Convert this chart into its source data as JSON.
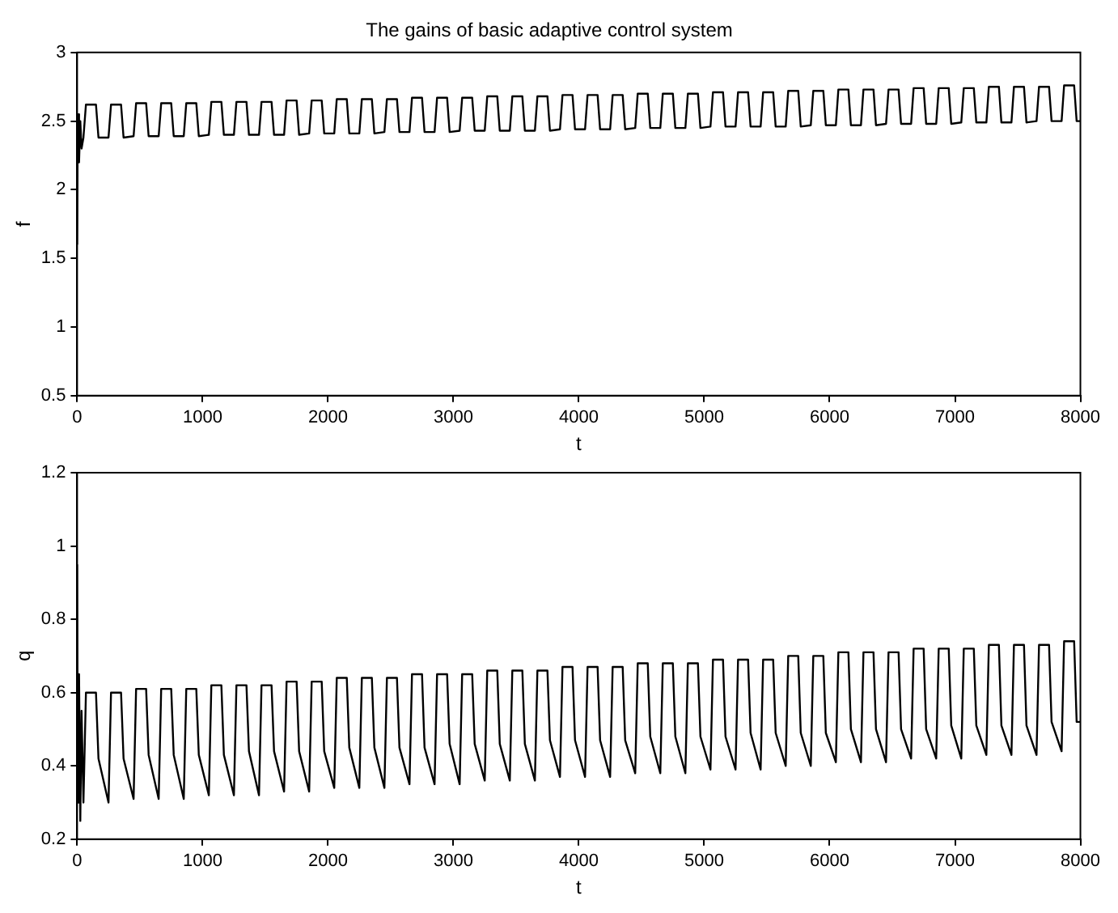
{
  "chart_data": [
    {
      "type": "line",
      "title": "The gains of basic adaptive control system",
      "xlabel": "t",
      "ylabel": "f",
      "grid": false,
      "legend": false,
      "marker": "none",
      "line_style": "solid",
      "x": [
        0,
        5,
        15,
        25,
        35,
        50,
        70,
        150,
        170,
        250,
        270,
        350,
        370,
        450,
        470,
        550,
        570,
        650,
        670,
        750,
        770,
        850,
        870,
        950,
        970,
        1050,
        1070,
        1150,
        1170,
        1250,
        1270,
        1350,
        1370,
        1450,
        1470,
        1550,
        1570,
        1650,
        1670,
        1750,
        1770,
        1850,
        1870,
        1950,
        1970,
        2050,
        2070,
        2150,
        2170,
        2250,
        2270,
        2350,
        2370,
        2450,
        2470,
        2550,
        2570,
        2650,
        2670,
        2750,
        2770,
        2850,
        2870,
        2950,
        2970,
        3050,
        3070,
        3150,
        3170,
        3250,
        3270,
        3350,
        3370,
        3450,
        3470,
        3550,
        3570,
        3650,
        3670,
        3750,
        3770,
        3850,
        3870,
        3950,
        3970,
        4050,
        4070,
        4150,
        4170,
        4250,
        4270,
        4350,
        4370,
        4450,
        4470,
        4550,
        4570,
        4650,
        4670,
        4750,
        4770,
        4850,
        4870,
        4950,
        4970,
        5050,
        5070,
        5150,
        5170,
        5250,
        5270,
        5350,
        5370,
        5450,
        5470,
        5550,
        5570,
        5650,
        5670,
        5750,
        5770,
        5850,
        5870,
        5950,
        5970,
        6050,
        6070,
        6150,
        6170,
        6250,
        6270,
        6350,
        6370,
        6450,
        6470,
        6550,
        6570,
        6650,
        6670,
        6750,
        6770,
        6850,
        6870,
        6950,
        6970,
        7050,
        7070,
        7150,
        7170,
        7250,
        7270,
        7350,
        7370,
        7450,
        7470,
        7550,
        7570,
        7650,
        7670,
        7750,
        7770,
        7850,
        7870,
        7950,
        7970,
        8000
      ],
      "series": [
        {
          "color": "#000000",
          "values": [
            1.6,
            2.55,
            2.2,
            2.5,
            2.3,
            2.38,
            2.62,
            2.62,
            2.38,
            2.38,
            2.62,
            2.62,
            2.38,
            2.39,
            2.63,
            2.63,
            2.39,
            2.39,
            2.63,
            2.63,
            2.39,
            2.39,
            2.63,
            2.63,
            2.39,
            2.4,
            2.64,
            2.64,
            2.4,
            2.4,
            2.64,
            2.64,
            2.4,
            2.4,
            2.64,
            2.64,
            2.4,
            2.4,
            2.65,
            2.65,
            2.4,
            2.41,
            2.65,
            2.65,
            2.41,
            2.41,
            2.66,
            2.66,
            2.41,
            2.41,
            2.66,
            2.66,
            2.41,
            2.42,
            2.66,
            2.66,
            2.42,
            2.42,
            2.67,
            2.67,
            2.42,
            2.42,
            2.67,
            2.67,
            2.42,
            2.43,
            2.67,
            2.67,
            2.43,
            2.43,
            2.68,
            2.68,
            2.43,
            2.43,
            2.68,
            2.68,
            2.43,
            2.43,
            2.68,
            2.68,
            2.43,
            2.44,
            2.69,
            2.69,
            2.44,
            2.44,
            2.69,
            2.69,
            2.44,
            2.44,
            2.69,
            2.69,
            2.44,
            2.45,
            2.7,
            2.7,
            2.45,
            2.45,
            2.7,
            2.7,
            2.45,
            2.45,
            2.7,
            2.7,
            2.45,
            2.46,
            2.71,
            2.71,
            2.46,
            2.46,
            2.71,
            2.71,
            2.46,
            2.46,
            2.71,
            2.71,
            2.46,
            2.46,
            2.72,
            2.72,
            2.46,
            2.47,
            2.72,
            2.72,
            2.47,
            2.47,
            2.73,
            2.73,
            2.47,
            2.47,
            2.73,
            2.73,
            2.47,
            2.48,
            2.73,
            2.73,
            2.48,
            2.48,
            2.74,
            2.74,
            2.48,
            2.48,
            2.74,
            2.74,
            2.48,
            2.49,
            2.74,
            2.74,
            2.49,
            2.49,
            2.75,
            2.75,
            2.49,
            2.49,
            2.75,
            2.75,
            2.49,
            2.5,
            2.75,
            2.75,
            2.5,
            2.5,
            2.76,
            2.76,
            2.5,
            2.5
          ]
        }
      ],
      "xlim": [
        0,
        8000
      ],
      "xticks": [
        0,
        1000,
        2000,
        3000,
        4000,
        5000,
        6000,
        7000,
        8000
      ],
      "ylim": [
        0.5,
        3
      ],
      "yticks": [
        0.5,
        1,
        1.5,
        2,
        2.5,
        3
      ]
    },
    {
      "type": "line",
      "xlabel": "t",
      "ylabel": "q",
      "grid": false,
      "legend": false,
      "marker": "none",
      "line_style": "solid",
      "x": [
        0,
        5,
        15,
        25,
        35,
        50,
        70,
        150,
        170,
        250,
        270,
        350,
        370,
        450,
        470,
        550,
        570,
        650,
        670,
        750,
        770,
        850,
        870,
        950,
        970,
        1050,
        1070,
        1150,
        1170,
        1250,
        1270,
        1350,
        1370,
        1450,
        1470,
        1550,
        1570,
        1650,
        1670,
        1750,
        1770,
        1850,
        1870,
        1950,
        1970,
        2050,
        2070,
        2150,
        2170,
        2250,
        2270,
        2350,
        2370,
        2450,
        2470,
        2550,
        2570,
        2650,
        2670,
        2750,
        2770,
        2850,
        2870,
        2950,
        2970,
        3050,
        3070,
        3150,
        3170,
        3250,
        3270,
        3350,
        3370,
        3450,
        3470,
        3550,
        3570,
        3650,
        3670,
        3750,
        3770,
        3850,
        3870,
        3950,
        3970,
        4050,
        4070,
        4150,
        4170,
        4250,
        4270,
        4350,
        4370,
        4450,
        4470,
        4550,
        4570,
        4650,
        4670,
        4750,
        4770,
        4850,
        4870,
        4950,
        4970,
        5050,
        5070,
        5150,
        5170,
        5250,
        5270,
        5350,
        5370,
        5450,
        5470,
        5550,
        5570,
        5650,
        5670,
        5750,
        5770,
        5850,
        5870,
        5950,
        5970,
        6050,
        6070,
        6150,
        6170,
        6250,
        6270,
        6350,
        6370,
        6450,
        6470,
        6550,
        6570,
        6650,
        6670,
        6750,
        6770,
        6850,
        6870,
        6950,
        6970,
        7050,
        7070,
        7150,
        7170,
        7250,
        7270,
        7350,
        7370,
        7450,
        7470,
        7550,
        7570,
        7650,
        7670,
        7750,
        7770,
        7850,
        7870,
        7950,
        7970,
        8000
      ],
      "series": [
        {
          "color": "#000000",
          "values": [
            0.95,
            0.3,
            0.65,
            0.25,
            0.55,
            0.3,
            0.6,
            0.6,
            0.42,
            0.3,
            0.6,
            0.6,
            0.42,
            0.31,
            0.61,
            0.61,
            0.43,
            0.31,
            0.61,
            0.61,
            0.43,
            0.31,
            0.61,
            0.61,
            0.43,
            0.32,
            0.62,
            0.62,
            0.43,
            0.32,
            0.62,
            0.62,
            0.44,
            0.32,
            0.62,
            0.62,
            0.44,
            0.33,
            0.63,
            0.63,
            0.44,
            0.33,
            0.63,
            0.63,
            0.44,
            0.34,
            0.64,
            0.64,
            0.45,
            0.34,
            0.64,
            0.64,
            0.45,
            0.34,
            0.64,
            0.64,
            0.45,
            0.35,
            0.65,
            0.65,
            0.45,
            0.35,
            0.65,
            0.65,
            0.46,
            0.35,
            0.65,
            0.65,
            0.46,
            0.36,
            0.66,
            0.66,
            0.46,
            0.36,
            0.66,
            0.66,
            0.46,
            0.36,
            0.66,
            0.66,
            0.47,
            0.37,
            0.67,
            0.67,
            0.47,
            0.37,
            0.67,
            0.67,
            0.47,
            0.37,
            0.67,
            0.67,
            0.47,
            0.38,
            0.68,
            0.68,
            0.48,
            0.38,
            0.68,
            0.68,
            0.48,
            0.38,
            0.68,
            0.68,
            0.48,
            0.39,
            0.69,
            0.69,
            0.48,
            0.39,
            0.69,
            0.69,
            0.49,
            0.39,
            0.69,
            0.69,
            0.49,
            0.4,
            0.7,
            0.7,
            0.49,
            0.4,
            0.7,
            0.7,
            0.49,
            0.41,
            0.71,
            0.71,
            0.5,
            0.41,
            0.71,
            0.71,
            0.5,
            0.41,
            0.71,
            0.71,
            0.5,
            0.42,
            0.72,
            0.72,
            0.5,
            0.42,
            0.72,
            0.72,
            0.51,
            0.42,
            0.72,
            0.72,
            0.51,
            0.43,
            0.73,
            0.73,
            0.51,
            0.43,
            0.73,
            0.73,
            0.51,
            0.43,
            0.73,
            0.73,
            0.52,
            0.44,
            0.74,
            0.74,
            0.52,
            0.52
          ]
        }
      ],
      "xlim": [
        0,
        8000
      ],
      "xticks": [
        0,
        1000,
        2000,
        3000,
        4000,
        5000,
        6000,
        7000,
        8000
      ],
      "ylim": [
        0.2,
        1.2
      ],
      "yticks": [
        0.2,
        0.4,
        0.6,
        0.8,
        1,
        1.2
      ]
    }
  ]
}
